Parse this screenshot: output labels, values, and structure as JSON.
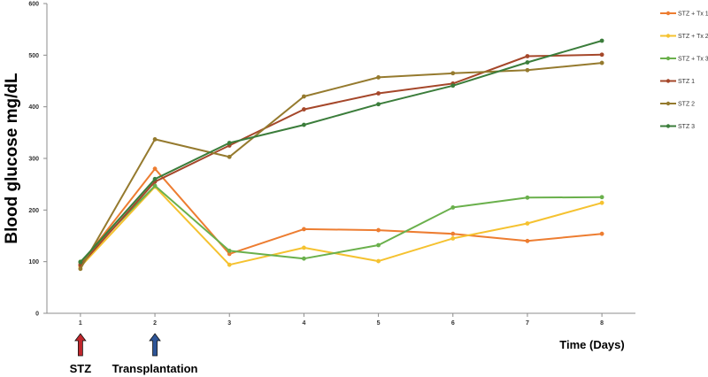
{
  "chart_data": {
    "type": "line",
    "title": "",
    "xlabel": "Time (Days)",
    "ylabel": "Blood glucose mg/dL",
    "x": [
      1,
      2,
      3,
      4,
      5,
      6,
      7,
      8
    ],
    "x_tick_labels": [
      "1",
      "2",
      "3",
      "4",
      "5",
      "6",
      "7",
      "8"
    ],
    "y_tick_labels": [
      "0",
      "100",
      "200",
      "300",
      "400",
      "500",
      "600"
    ],
    "xlim": [
      0.55,
      8.45
    ],
    "ylim": [
      0,
      600
    ],
    "grid": false,
    "legend_position": "right",
    "series": [
      {
        "name": "STZ + Tx 1",
        "color": "#ED7D31",
        "values": [
          95,
          280,
          115,
          163,
          161,
          154,
          140,
          154
        ]
      },
      {
        "name": "STZ + Tx 2",
        "color": "#F5C230",
        "values": [
          90,
          245,
          94,
          127,
          101,
          145,
          174,
          214
        ]
      },
      {
        "name": "STZ + Tx 3",
        "color": "#6AB04C",
        "values": [
          100,
          247,
          121,
          106,
          132,
          205,
          224,
          225
        ]
      },
      {
        "name": "STZ 1",
        "color": "#A5472A",
        "values": [
          93,
          255,
          325,
          395,
          426,
          445,
          498,
          501
        ]
      },
      {
        "name": "STZ 2",
        "color": "#957A2E",
        "values": [
          86,
          337,
          303,
          420,
          457,
          465,
          471,
          485
        ]
      },
      {
        "name": "STZ 3",
        "color": "#3B7D3B",
        "values": [
          99,
          260,
          330,
          365,
          405,
          441,
          486,
          528
        ]
      }
    ],
    "annotations": [
      {
        "label": "STZ",
        "x": 1,
        "arrow_color": "#C0272D"
      },
      {
        "label": "Transplantation",
        "x": 2,
        "arrow_color": "#2E5597"
      }
    ]
  }
}
